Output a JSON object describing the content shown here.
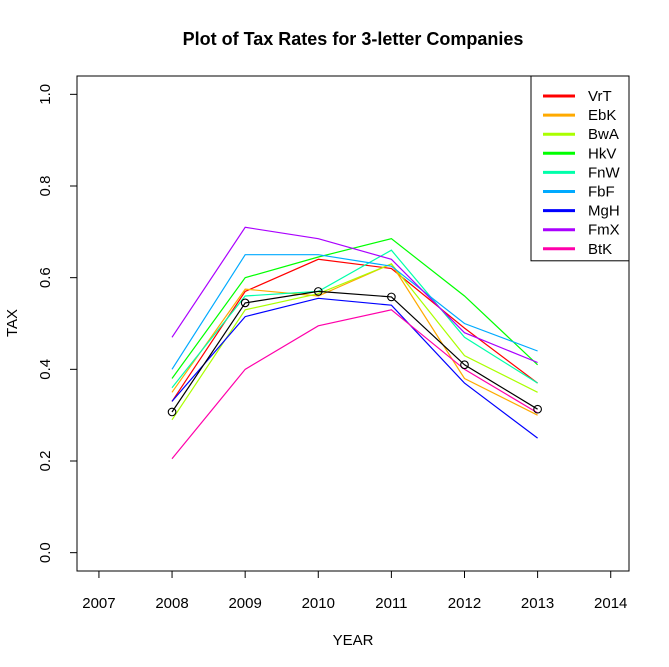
{
  "chart_data": {
    "type": "line",
    "title": "Plot of Tax Rates for 3-letter Companies",
    "xlabel": "YEAR",
    "ylabel": "TAX",
    "xlim": [
      2006.7,
      2014.25
    ],
    "ylim": [
      -0.04,
      1.04
    ],
    "xticks": [
      2007,
      2008,
      2009,
      2010,
      2011,
      2012,
      2013,
      2014
    ],
    "xtick_labels": [
      "2007",
      "2008",
      "2009",
      "2010",
      "2011",
      "2012",
      "2013",
      "2014"
    ],
    "yticks": [
      0.0,
      0.2,
      0.4,
      0.6,
      0.8,
      1.0
    ],
    "ytick_labels": [
      "0.0",
      "0.2",
      "0.4",
      "0.6",
      "0.8",
      "1.0"
    ],
    "legend_position": "top-right",
    "grid": false,
    "x": [
      2008,
      2009,
      2010,
      2011,
      2012,
      2013
    ],
    "series": [
      {
        "name": "VrT",
        "color": "#ff0000",
        "values": [
          0.33,
          0.57,
          0.64,
          0.62,
          0.49,
          0.37
        ]
      },
      {
        "name": "EbK",
        "color": "#ffaa00",
        "values": [
          0.35,
          0.575,
          0.56,
          0.63,
          0.38,
          0.3
        ]
      },
      {
        "name": "BwA",
        "color": "#aaff00",
        "values": [
          0.29,
          0.53,
          0.565,
          0.63,
          0.43,
          0.35
        ]
      },
      {
        "name": "HkV",
        "color": "#00ff00",
        "values": [
          0.38,
          0.6,
          0.645,
          0.685,
          0.56,
          0.41
        ]
      },
      {
        "name": "FnW",
        "color": "#00ffaa",
        "values": [
          0.36,
          0.56,
          0.57,
          0.66,
          0.47,
          0.37
        ]
      },
      {
        "name": "FbF",
        "color": "#00aaff",
        "values": [
          0.4,
          0.65,
          0.65,
          0.625,
          0.5,
          0.44
        ]
      },
      {
        "name": "MgH",
        "color": "#0000ff",
        "values": [
          0.33,
          0.515,
          0.555,
          0.54,
          0.37,
          0.25
        ]
      },
      {
        "name": "FmX",
        "color": "#aa00ff",
        "values": [
          0.47,
          0.71,
          0.685,
          0.64,
          0.48,
          0.415
        ]
      },
      {
        "name": "BtK",
        "color": "#ff00aa",
        "values": [
          0.205,
          0.4,
          0.495,
          0.53,
          0.4,
          0.305
        ]
      }
    ],
    "mean_series": {
      "color": "#000000",
      "marker": "open-circle",
      "values": [
        0.307,
        0.545,
        0.57,
        0.558,
        0.41,
        0.313
      ]
    }
  }
}
